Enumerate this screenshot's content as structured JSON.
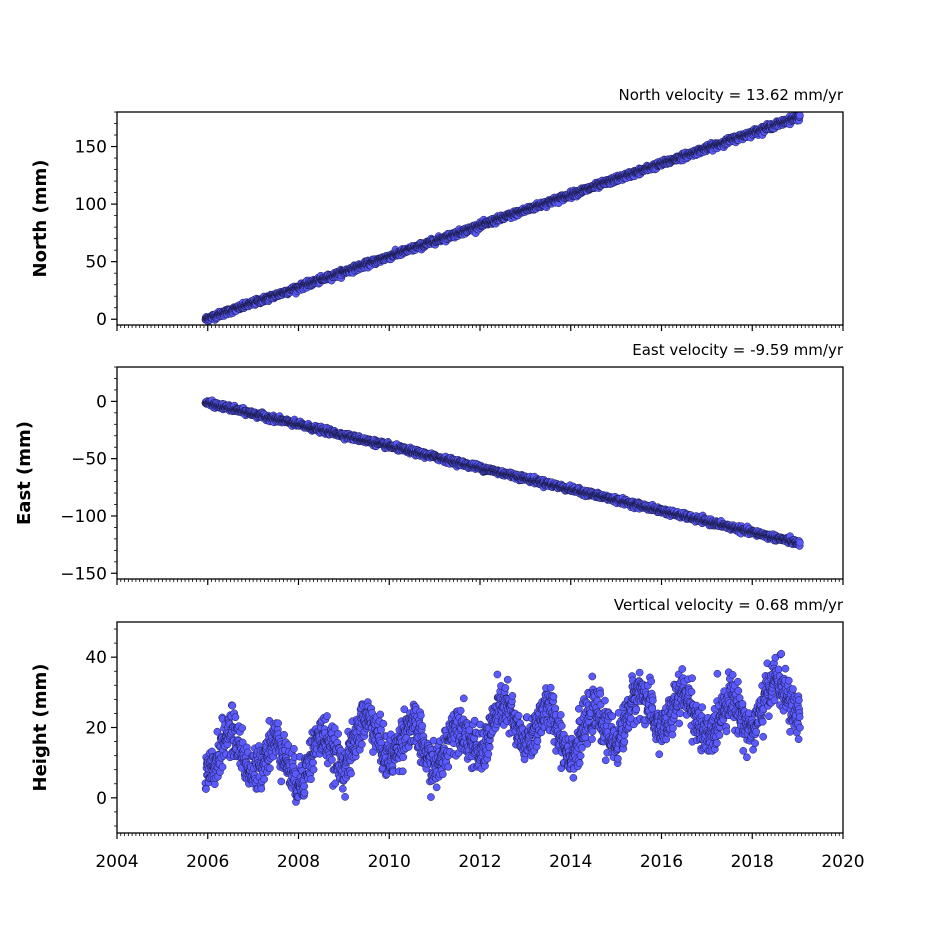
{
  "chart_data": [
    {
      "type": "scatter",
      "title": "North velocity = 13.62 mm/yr",
      "ylabel": "North (mm)",
      "xlim": [
        2004,
        2020
      ],
      "ylim": [
        -5,
        180
      ],
      "yticks": [
        0,
        50,
        100,
        150
      ],
      "marker_color": "#5a5aff",
      "series": {
        "start_year": 2005.95,
        "end_year": 2019.05,
        "start_value": 0,
        "end_value": 176,
        "seasonal_amplitude": 0.0,
        "noise": 1.3
      }
    },
    {
      "type": "scatter",
      "title": "East velocity = -9.59 mm/yr",
      "ylabel": "East (mm)",
      "xlim": [
        2004,
        2020
      ],
      "ylim": [
        -155,
        30
      ],
      "yticks": [
        -150,
        -100,
        -50,
        0
      ],
      "marker_color": "#5a5aff",
      "series": {
        "start_year": 2005.95,
        "end_year": 2019.05,
        "start_value": -1,
        "end_value": -124,
        "seasonal_amplitude": 0.0,
        "noise": 1.2
      }
    },
    {
      "type": "scatter",
      "title": "Vertical velocity = 0.68 mm/yr",
      "ylabel": "Height (mm)",
      "xlabel": "",
      "xlim": [
        2004,
        2020
      ],
      "ylim": [
        -10,
        50
      ],
      "yticks": [
        0,
        20,
        40
      ],
      "xticks": [
        2004,
        2006,
        2008,
        2010,
        2012,
        2014,
        2016,
        2018,
        2020
      ],
      "marker_color": "#5a5aff",
      "series": {
        "start_year": 2005.95,
        "end_year": 2019.05,
        "start_value": 10,
        "end_value": 27,
        "seasonal_amplitude": 5.5,
        "noise": 3.2
      }
    }
  ]
}
